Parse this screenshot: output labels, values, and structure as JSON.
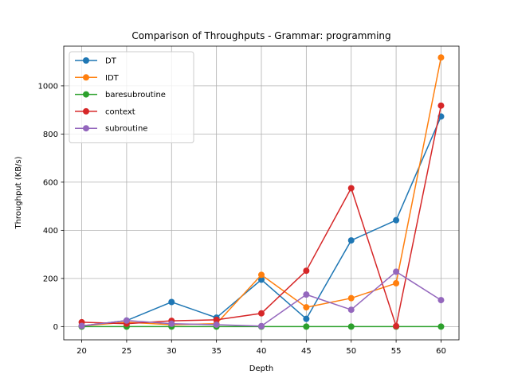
{
  "chart_data": {
    "type": "line",
    "title": "Comparison of Throughputs - Grammar: programming",
    "xlabel": "Depth",
    "ylabel": "Throughput (KB/s)",
    "x": [
      20,
      25,
      30,
      35,
      40,
      45,
      50,
      55,
      60
    ],
    "xticks": [
      "20",
      "25",
      "30",
      "35",
      "40",
      "45",
      "50",
      "55",
      "60"
    ],
    "yticks": [
      "0",
      "200",
      "400",
      "600",
      "800",
      "1000"
    ],
    "xlim": [
      18.0,
      62.0
    ],
    "ylim": [
      -55,
      1165
    ],
    "grid": true,
    "legend_position": "top-left",
    "series": [
      {
        "name": "DT",
        "color": "#1f77b4",
        "values": [
          3,
          25,
          102,
          37,
          195,
          32,
          358,
          442,
          873
        ]
      },
      {
        "name": "IDT",
        "color": "#ff7f0e",
        "values": [
          3,
          18,
          8,
          12,
          215,
          80,
          118,
          180,
          1118
        ]
      },
      {
        "name": "baresubroutine",
        "color": "#2ca02c",
        "values": [
          0,
          0,
          0,
          0,
          0,
          0,
          0,
          0,
          0
        ]
      },
      {
        "name": "context",
        "color": "#d62728",
        "values": [
          18,
          12,
          24,
          28,
          55,
          232,
          575,
          2,
          918
        ]
      },
      {
        "name": "subroutine",
        "color": "#9467bd",
        "values": [
          3,
          25,
          12,
          8,
          2,
          133,
          70,
          228,
          110
        ]
      }
    ]
  }
}
